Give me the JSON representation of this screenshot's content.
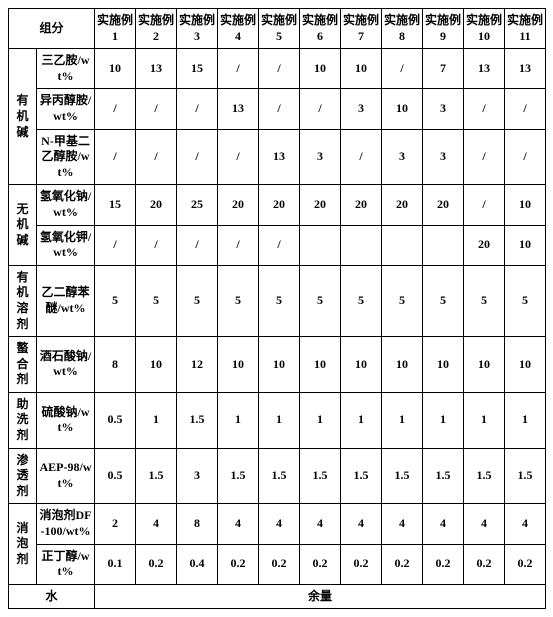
{
  "header": {
    "component": "组分",
    "examples": [
      "实施例 1",
      "实施例 2",
      "实施例 3",
      "实施例 4",
      "实施例 5",
      "实施例 6",
      "实施例 7",
      "实施例 8",
      "实施例 9",
      "实施例 10",
      "实施例 11"
    ]
  },
  "categories": {
    "organic_base": "有机碱",
    "inorganic_base": "无机碱",
    "organic_solvent": "有机溶剂",
    "chelating_agent": "螯合剂",
    "washing_aid": "助洗剂",
    "penetrant": "渗透剂",
    "defoamer": "消泡剂",
    "water": "水"
  },
  "rows": {
    "r1": {
      "name": "三乙胺/wt%",
      "vals": [
        "10",
        "13",
        "15",
        "/",
        "/",
        "10",
        "10",
        "/",
        "7",
        "13",
        "13"
      ]
    },
    "r2": {
      "name": "异丙醇胺/wt%",
      "vals": [
        "/",
        "/",
        "/",
        "13",
        "/",
        "/",
        "3",
        "10",
        "3",
        "/",
        "/"
      ]
    },
    "r3": {
      "name": "N-甲基二乙醇胺/wt%",
      "vals": [
        "/",
        "/",
        "/",
        "/",
        "13",
        "3",
        "/",
        "3",
        "3",
        "/",
        "/"
      ]
    },
    "r4": {
      "name": "氢氧化钠/wt%",
      "vals": [
        "15",
        "20",
        "25",
        "20",
        "20",
        "20",
        "20",
        "20",
        "20",
        "/",
        "10"
      ]
    },
    "r5": {
      "name": "氢氧化钾/wt%",
      "vals": [
        "/",
        "/",
        "/",
        "/",
        "/",
        "",
        "",
        "",
        "",
        "20",
        "10"
      ]
    },
    "r6": {
      "name": "乙二醇苯醚/wt%",
      "vals": [
        "5",
        "5",
        "5",
        "5",
        "5",
        "5",
        "5",
        "5",
        "5",
        "5",
        "5"
      ]
    },
    "r7": {
      "name": "酒石酸钠/wt%",
      "vals": [
        "8",
        "10",
        "12",
        "10",
        "10",
        "10",
        "10",
        "10",
        "10",
        "10",
        "10"
      ]
    },
    "r8": {
      "name": "硫酸钠/wt%",
      "vals": [
        "0.5",
        "1",
        "1.5",
        "1",
        "1",
        "1",
        "1",
        "1",
        "1",
        "1",
        "1"
      ]
    },
    "r9": {
      "name": "AEP-98/wt%",
      "vals": [
        "0.5",
        "1.5",
        "3",
        "1.5",
        "1.5",
        "1.5",
        "1.5",
        "1.5",
        "1.5",
        "1.5",
        "1.5"
      ]
    },
    "r10": {
      "name": "消泡剂DF-100/wt%",
      "vals": [
        "2",
        "4",
        "8",
        "4",
        "4",
        "4",
        "4",
        "4",
        "4",
        "4",
        "4"
      ]
    },
    "r11": {
      "name": "正丁醇/wt%",
      "vals": [
        "0.1",
        "0.2",
        "0.4",
        "0.2",
        "0.2",
        "0.2",
        "0.2",
        "0.2",
        "0.2",
        "0.2",
        "0.2"
      ]
    }
  },
  "water_value": "余量"
}
